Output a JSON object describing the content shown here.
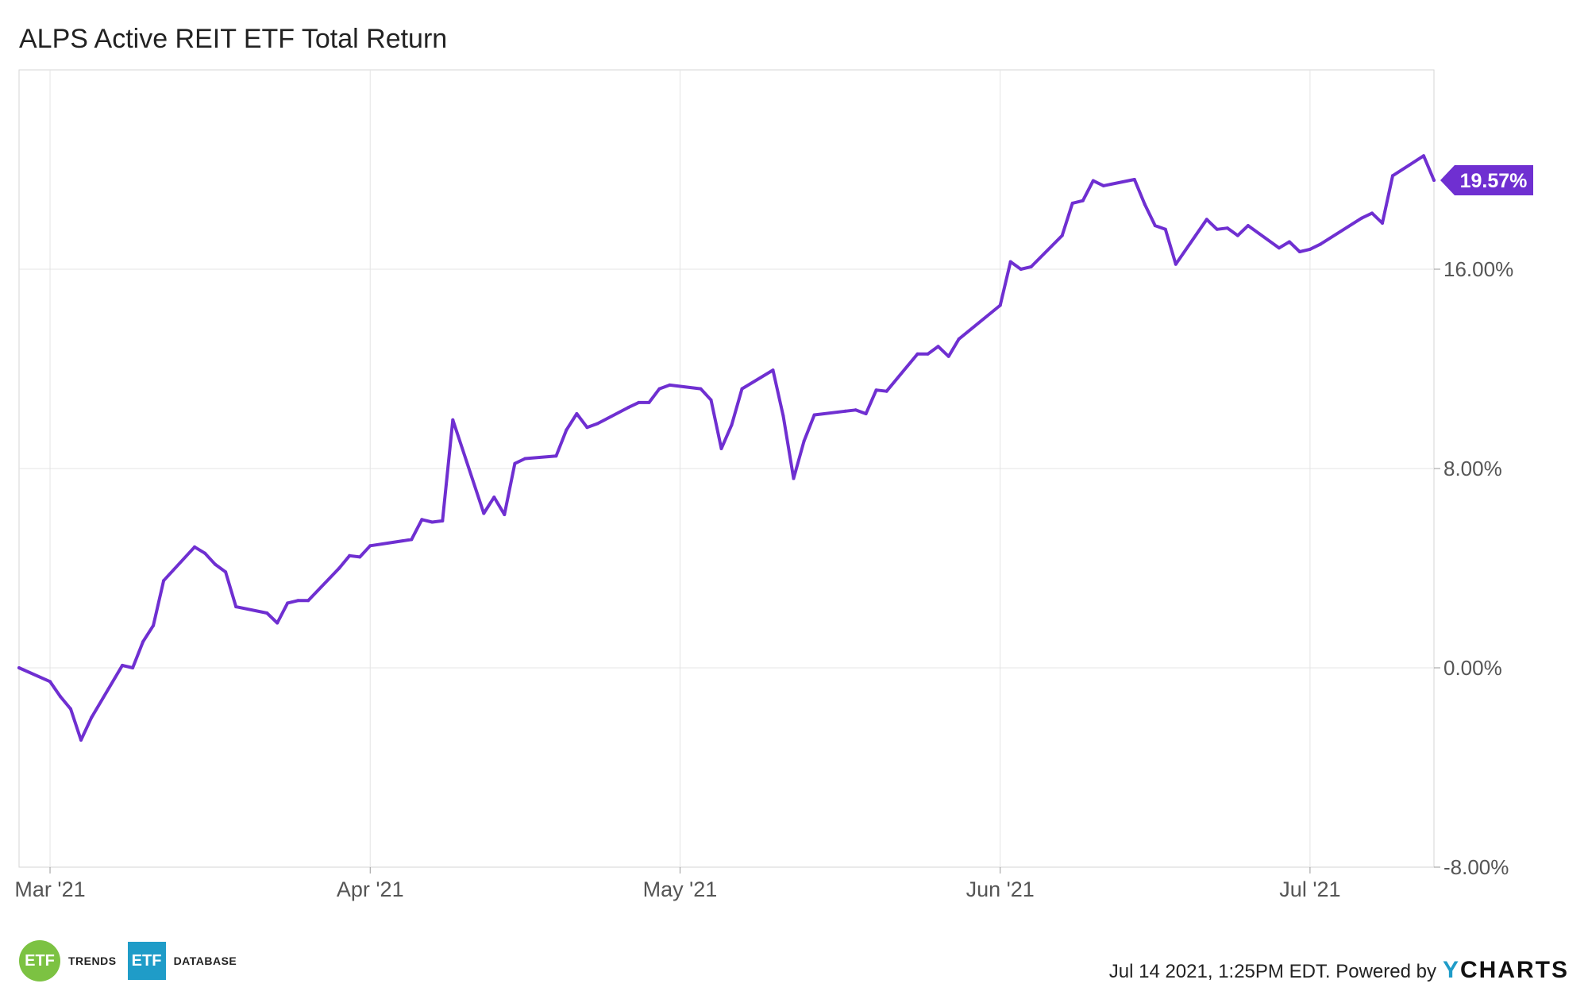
{
  "header": {
    "title": "ALPS Active REIT ETF Total Return"
  },
  "footer": {
    "timestamp": "Jul 14 2021, 1:25PM EDT. Powered by",
    "ycharts_y": "Y",
    "ycharts_rest": "CHARTS",
    "logo1_mark": "ETF",
    "logo1_text": "TRENDS",
    "logo2_mark": "ETF",
    "logo2_text": "DATABASE"
  },
  "colors": {
    "line": "#6f2fd1",
    "grid": "#e4e4e4",
    "axis_text": "#555555",
    "badge_text": "#ffffff"
  },
  "chart_data": {
    "type": "line",
    "title": "ALPS Active REIT ETF Total Return",
    "x_start": "2021-02-26",
    "x_end": "2021-07-13",
    "x_ticks": [
      {
        "date": "2021-03-01",
        "label": "Mar '21"
      },
      {
        "date": "2021-04-01",
        "label": "Apr '21"
      },
      {
        "date": "2021-05-01",
        "label": "May '21"
      },
      {
        "date": "2021-06-01",
        "label": "Jun '21"
      },
      {
        "date": "2021-07-01",
        "label": "Jul '21"
      }
    ],
    "y_ticks": [
      {
        "value": 16,
        "label": "16.00%"
      },
      {
        "value": 8,
        "label": "8.00%"
      },
      {
        "value": 0,
        "label": "0.00%"
      },
      {
        "value": -8,
        "label": "-8.00%"
      }
    ],
    "ylim": [
      -8,
      24
    ],
    "grid": true,
    "last_value_label": "19.57%",
    "series": [
      {
        "points": [
          [
            "2021-02-26",
            0.0
          ],
          [
            "2021-03-01",
            -0.55
          ],
          [
            "2021-03-02",
            -1.15
          ],
          [
            "2021-03-03",
            -1.65
          ],
          [
            "2021-03-04",
            -2.9
          ],
          [
            "2021-03-05",
            -2.0
          ],
          [
            "2021-03-08",
            0.1
          ],
          [
            "2021-03-09",
            0.0
          ],
          [
            "2021-03-10",
            1.05
          ],
          [
            "2021-03-11",
            1.7
          ],
          [
            "2021-03-12",
            3.5
          ],
          [
            "2021-03-15",
            4.85
          ],
          [
            "2021-03-16",
            4.6
          ],
          [
            "2021-03-17",
            4.15
          ],
          [
            "2021-03-18",
            3.85
          ],
          [
            "2021-03-19",
            2.45
          ],
          [
            "2021-03-22",
            2.2
          ],
          [
            "2021-03-23",
            1.8
          ],
          [
            "2021-03-24",
            2.6
          ],
          [
            "2021-03-25",
            2.7
          ],
          [
            "2021-03-26",
            2.7
          ],
          [
            "2021-03-29",
            4.0
          ],
          [
            "2021-03-30",
            4.5
          ],
          [
            "2021-03-31",
            4.45
          ],
          [
            "2021-04-01",
            4.9
          ],
          [
            "2021-04-05",
            5.15
          ],
          [
            "2021-04-06",
            5.95
          ],
          [
            "2021-04-07",
            5.85
          ],
          [
            "2021-04-08",
            5.9
          ],
          [
            "2021-04-09",
            9.95
          ],
          [
            "2021-04-12",
            6.2
          ],
          [
            "2021-04-13",
            6.85
          ],
          [
            "2021-04-14",
            6.15
          ],
          [
            "2021-04-15",
            8.2
          ],
          [
            "2021-04-16",
            8.4
          ],
          [
            "2021-04-19",
            8.5
          ],
          [
            "2021-04-20",
            9.55
          ],
          [
            "2021-04-21",
            10.2
          ],
          [
            "2021-04-22",
            9.65
          ],
          [
            "2021-04-23",
            9.8
          ],
          [
            "2021-04-26",
            10.45
          ],
          [
            "2021-04-27",
            10.65
          ],
          [
            "2021-04-28",
            10.65
          ],
          [
            "2021-04-29",
            11.2
          ],
          [
            "2021-04-30",
            11.35
          ],
          [
            "2021-05-03",
            11.2
          ],
          [
            "2021-05-04",
            10.75
          ],
          [
            "2021-05-05",
            8.8
          ],
          [
            "2021-05-06",
            9.75
          ],
          [
            "2021-05-07",
            11.2
          ],
          [
            "2021-05-10",
            11.95
          ],
          [
            "2021-05-11",
            10.1
          ],
          [
            "2021-05-12",
            7.6
          ],
          [
            "2021-05-13",
            9.1
          ],
          [
            "2021-05-14",
            10.15
          ],
          [
            "2021-05-17",
            10.3
          ],
          [
            "2021-05-18",
            10.35
          ],
          [
            "2021-05-19",
            10.2
          ],
          [
            "2021-05-20",
            11.15
          ],
          [
            "2021-05-21",
            11.1
          ],
          [
            "2021-05-24",
            12.6
          ],
          [
            "2021-05-25",
            12.6
          ],
          [
            "2021-05-26",
            12.9
          ],
          [
            "2021-05-27",
            12.5
          ],
          [
            "2021-05-28",
            13.2
          ],
          [
            "2021-06-01",
            14.55
          ],
          [
            "2021-06-02",
            16.3
          ],
          [
            "2021-06-03",
            16.0
          ],
          [
            "2021-06-04",
            16.1
          ],
          [
            "2021-06-07",
            17.35
          ],
          [
            "2021-06-08",
            18.65
          ],
          [
            "2021-06-09",
            18.75
          ],
          [
            "2021-06-10",
            19.55
          ],
          [
            "2021-06-11",
            19.35
          ],
          [
            "2021-06-14",
            19.6
          ],
          [
            "2021-06-15",
            18.6
          ],
          [
            "2021-06-16",
            17.75
          ],
          [
            "2021-06-17",
            17.6
          ],
          [
            "2021-06-18",
            16.2
          ],
          [
            "2021-06-21",
            18.0
          ],
          [
            "2021-06-22",
            17.6
          ],
          [
            "2021-06-23",
            17.65
          ],
          [
            "2021-06-24",
            17.35
          ],
          [
            "2021-06-25",
            17.75
          ],
          [
            "2021-06-28",
            16.85
          ],
          [
            "2021-06-29",
            17.1
          ],
          [
            "2021-06-30",
            16.7
          ],
          [
            "2021-07-01",
            16.8
          ],
          [
            "2021-07-02",
            17.0
          ],
          [
            "2021-07-06",
            18.05
          ],
          [
            "2021-07-07",
            18.25
          ],
          [
            "2021-07-08",
            17.85
          ],
          [
            "2021-07-09",
            19.75
          ],
          [
            "2021-07-12",
            20.55
          ],
          [
            "2021-07-13",
            19.57
          ]
        ]
      }
    ]
  }
}
